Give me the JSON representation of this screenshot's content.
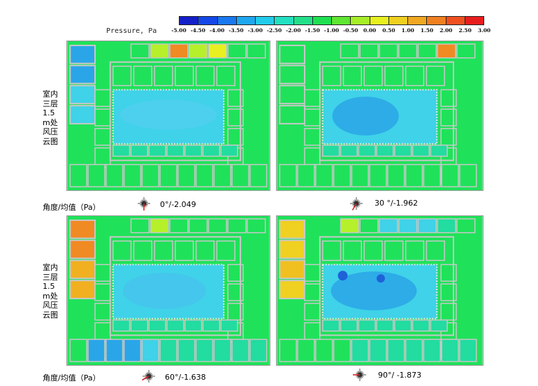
{
  "colors": {
    "base_green": "#1fe25a",
    "teal": "#22dca0",
    "cyan_light": "#3fd2e8",
    "blue_mid": "#2aa6e8",
    "blue_deep": "#1e62d8",
    "yellow_green": "#b6f02a",
    "orange": "#f08a22",
    "wall": "#c8c8c8"
  },
  "legend": {
    "title": "Pressure, Pa",
    "ticks": [
      "-5.00",
      "-4.50",
      "-4.00",
      "-3.50",
      "-3.00",
      "-2.50",
      "-2.00",
      "-1.50",
      "-1.00",
      "-0.50",
      "0.00",
      "0.50",
      "1.00",
      "1.50",
      "2.00",
      "2.50",
      "3.00"
    ],
    "colors": [
      "#1420c8",
      "#1448e8",
      "#1a78f0",
      "#1ea8f0",
      "#22ccea",
      "#22e0c0",
      "#22e08a",
      "#1ee050",
      "#5ee630",
      "#a8ee28",
      "#e8f020",
      "#f0d020",
      "#f0a820",
      "#f08020",
      "#f05020",
      "#e81e1e"
    ]
  },
  "panels": [
    {
      "id": "p1",
      "side_label": [
        "室内",
        "三层",
        "1.5",
        "m处",
        "风压",
        "云图"
      ],
      "caption": "0°/-2.049",
      "wind_icon": "wind-rose-icon"
    },
    {
      "id": "p2",
      "caption": "30 °/-1.962",
      "wind_icon": "wind-rose-icon"
    },
    {
      "id": "p3",
      "side_label": [
        "室内",
        "三层",
        "1.5",
        "m处",
        "风压",
        "云图"
      ],
      "caption": "60°/-1.638",
      "wind_icon": "wind-rose-icon"
    },
    {
      "id": "p4",
      "caption": "90°/ -1.873",
      "wind_icon": "wind-rose-icon"
    }
  ],
  "row_labels": [
    "角度/均值（Pa）",
    "角度/均值（Pa）"
  ]
}
